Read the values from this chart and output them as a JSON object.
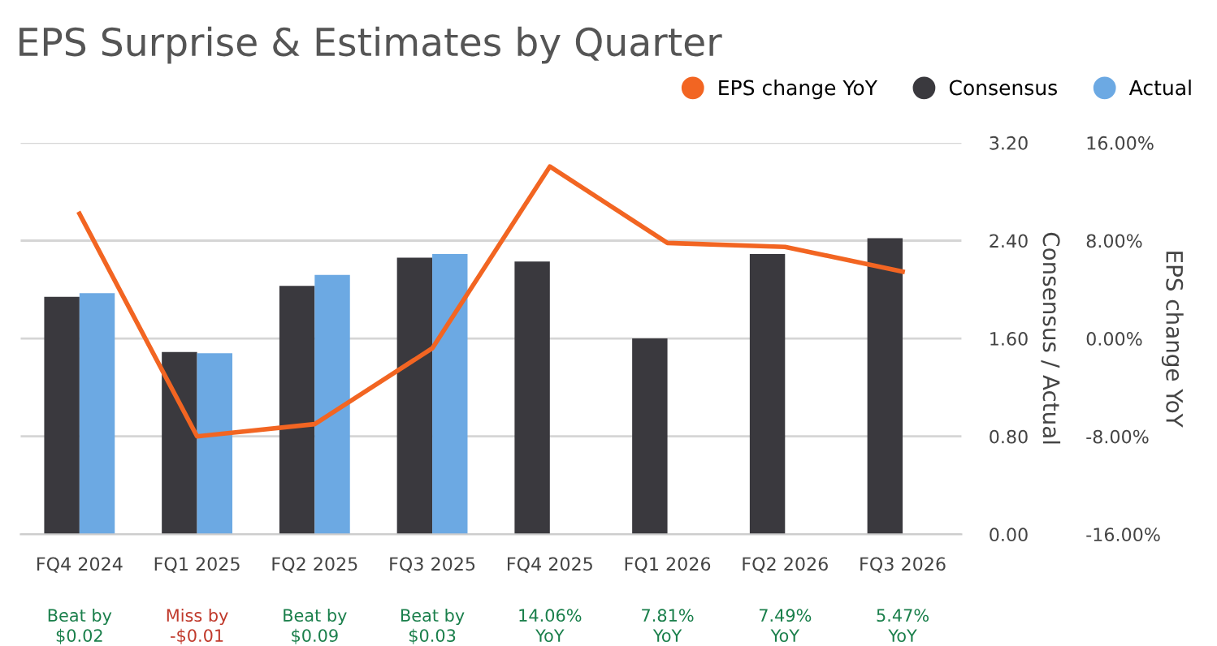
{
  "chart_data": {
    "type": "bar",
    "title": "EPS Surprise & Estimates by Quarter",
    "categories": [
      "FQ4 2024",
      "FQ1 2025",
      "FQ2 2025",
      "FQ3 2025",
      "FQ4 2025",
      "FQ1 2026",
      "FQ2 2026",
      "FQ3 2026"
    ],
    "series": [
      {
        "name": "EPS change YoY",
        "type": "line",
        "axis": "y2",
        "color": "#f26522",
        "values": [
          10.2,
          -8.0,
          -7.0,
          -0.8,
          14.06,
          7.81,
          7.49,
          5.47
        ]
      },
      {
        "name": "Consensus",
        "color": "#3a393e",
        "values": [
          1.94,
          1.49,
          2.03,
          2.26,
          2.23,
          1.6,
          2.29,
          2.42
        ]
      },
      {
        "name": "Actual",
        "color": "#6ca9e3",
        "values": [
          1.97,
          1.48,
          2.12,
          2.29,
          null,
          null,
          null,
          null
        ]
      }
    ],
    "ylabel": "Consensus / Actual",
    "y2label": "EPS change YoY",
    "ylim": [
      0,
      3.2
    ],
    "yticks": [
      {
        "value": 0,
        "label": "0.00"
      },
      {
        "value": 0.8,
        "label": "0.80"
      },
      {
        "value": 1.6,
        "label": "1.60"
      },
      {
        "value": 2.4,
        "label": "2.40"
      },
      {
        "value": 3.2,
        "label": "3.20"
      }
    ],
    "y2lim": [
      -16,
      16
    ],
    "y2ticks": [
      {
        "value": -16,
        "label": "-16.00%"
      },
      {
        "value": -8,
        "label": "-8.00%"
      },
      {
        "value": 0,
        "label": "0.00%"
      },
      {
        "value": 8,
        "label": "8.00%"
      },
      {
        "value": 16,
        "label": "16.00%"
      }
    ],
    "annotations": [
      "Beat by\n$0.02",
      "Miss by\n-$0.01",
      "Beat by\n$0.09",
      "Beat by\n$0.03",
      "14.06%\nYoY",
      "7.81%\nYoY",
      "7.49%\nYoY",
      "5.47%\nYoY"
    ],
    "grid": "y",
    "legend": "top right"
  }
}
